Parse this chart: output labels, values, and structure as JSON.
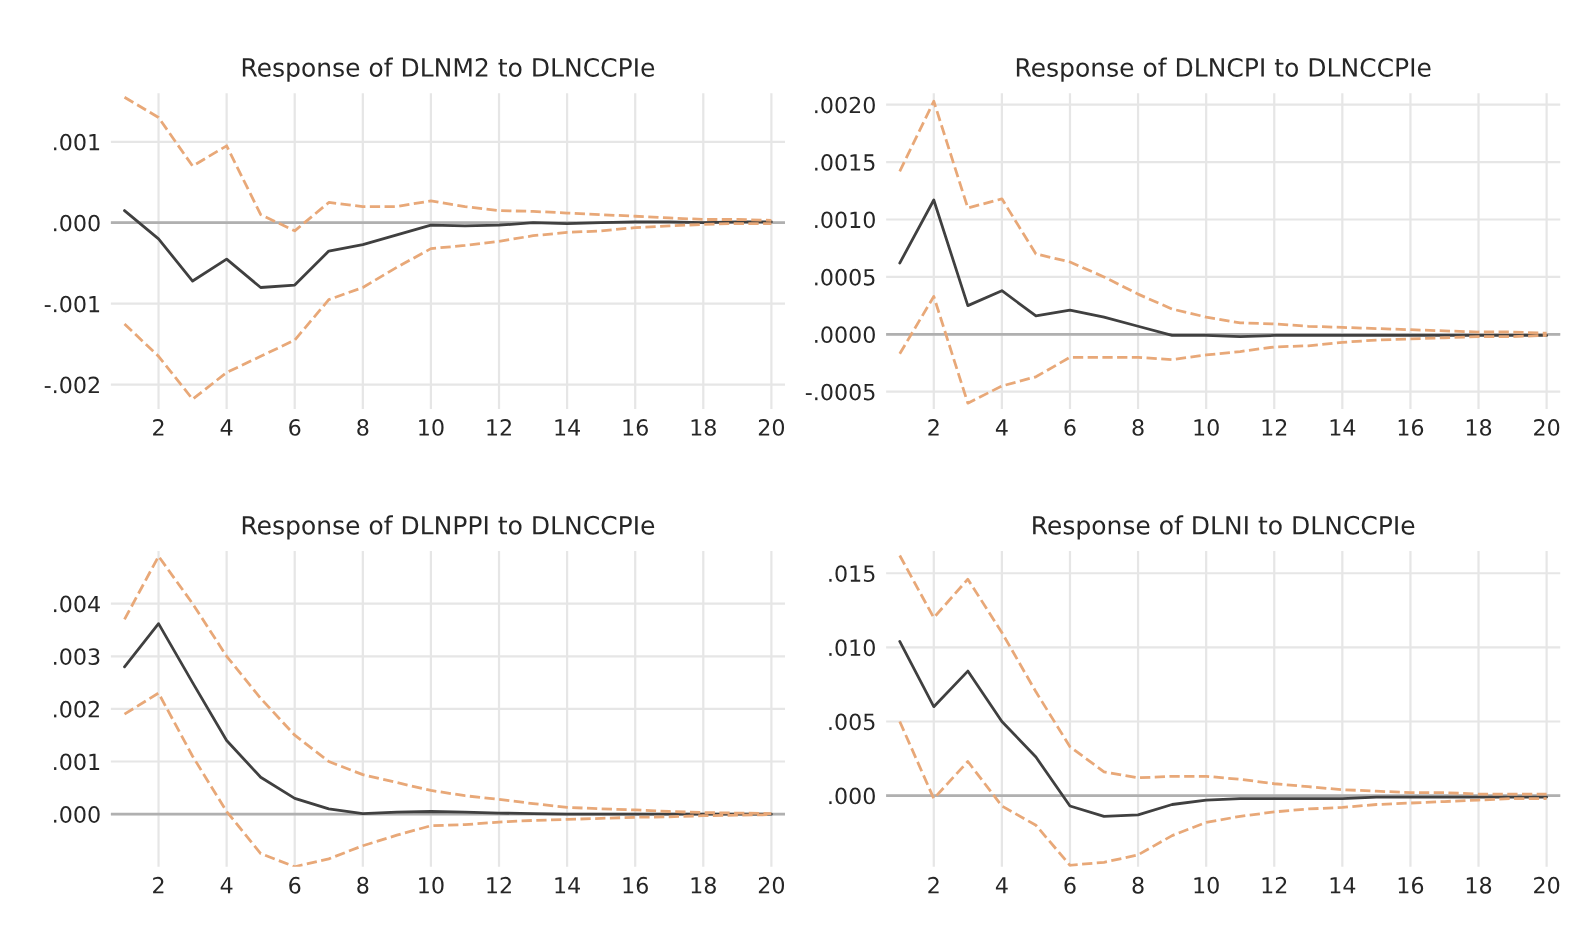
{
  "chart_data": [
    {
      "type": "line",
      "title": "Response of DLNM2 to DLNCCPIe",
      "x": [
        1,
        2,
        3,
        4,
        5,
        6,
        7,
        8,
        9,
        10,
        11,
        12,
        13,
        14,
        15,
        16,
        17,
        18,
        19,
        20
      ],
      "xlim": [
        0.6,
        20.4
      ],
      "xticks": [
        2,
        4,
        6,
        8,
        10,
        12,
        14,
        16,
        18,
        20
      ],
      "ylim": [
        -0.0023,
        0.0016
      ],
      "yticks": [
        {
          "value": 0.001,
          "label": ".001"
        },
        {
          "value": 0,
          "label": ".000"
        },
        {
          "value": -0.001,
          "label": "-.001"
        },
        {
          "value": -0.002,
          "label": "-.002"
        }
      ],
      "grid": true,
      "ref_lines": [
        {
          "axis": "y",
          "value": 0,
          "color": "#b0b0b0"
        }
      ],
      "series": [
        {
          "color": "#404040",
          "line_style": "solid",
          "values": [
            0.00015,
            -0.0002,
            -0.00072,
            -0.00045,
            -0.0008,
            -0.00077,
            -0.00035,
            -0.00027,
            -0.00015,
            -3e-05,
            -4e-05,
            -3e-05,
            0,
            -1e-05,
            0,
            1e-05,
            1e-05,
            0,
            1e-05,
            1e-05
          ]
        },
        {
          "color": "#e8a878",
          "line_style": "dashed",
          "values": [
            0.00155,
            0.0013,
            0.0007,
            0.00095,
            0.0001,
            -0.0001,
            0.00025,
            0.0002,
            0.0002,
            0.00027,
            0.0002,
            0.00015,
            0.00014,
            0.00012,
            0.0001,
            8e-05,
            6e-05,
            4e-05,
            4e-05,
            3e-05
          ]
        },
        {
          "color": "#e8a878",
          "line_style": "dashed",
          "values": [
            -0.00125,
            -0.00165,
            -0.00218,
            -0.00185,
            -0.00165,
            -0.00145,
            -0.00095,
            -0.0008,
            -0.00055,
            -0.00032,
            -0.00028,
            -0.00023,
            -0.00016,
            -0.00012,
            -0.0001,
            -6e-05,
            -4e-05,
            -2e-05,
            -1e-05,
            -1e-05
          ]
        }
      ]
    },
    {
      "type": "line",
      "title": "Response of DLNCPI to DLNCCPIe",
      "x": [
        1,
        2,
        3,
        4,
        5,
        6,
        7,
        8,
        9,
        10,
        11,
        12,
        13,
        14,
        15,
        16,
        17,
        18,
        19,
        20
      ],
      "xlim": [
        0.6,
        20.4
      ],
      "xticks": [
        2,
        4,
        6,
        8,
        10,
        12,
        14,
        16,
        18,
        20
      ],
      "ylim": [
        -0.00065,
        0.0021
      ],
      "yticks": [
        {
          "value": 0.002,
          "label": ".0020"
        },
        {
          "value": 0.0015,
          "label": ".0015"
        },
        {
          "value": 0.001,
          "label": ".0010"
        },
        {
          "value": 0.0005,
          "label": ".0005"
        },
        {
          "value": 0,
          "label": ".0000"
        },
        {
          "value": -0.0005,
          "label": "-.0005"
        }
      ],
      "grid": true,
      "ref_lines": [
        {
          "axis": "y",
          "value": 0,
          "color": "#b0b0b0"
        }
      ],
      "series": [
        {
          "color": "#404040",
          "line_style": "solid",
          "values": [
            0.00062,
            0.00117,
            0.00025,
            0.00038,
            0.00016,
            0.00021,
            0.00015,
            7e-05,
            -1e-05,
            -1e-05,
            -2e-05,
            -1e-05,
            -1e-05,
            -1e-05,
            -1e-05,
            -1e-05,
            -1e-05,
            -1e-05,
            -1e-05,
            -1e-05
          ]
        },
        {
          "color": "#e8a878",
          "line_style": "dashed",
          "values": [
            0.00142,
            0.00203,
            0.0011,
            0.00118,
            0.0007,
            0.00063,
            0.0005,
            0.00035,
            0.00022,
            0.00015,
            0.0001,
            9e-05,
            7e-05,
            6e-05,
            5e-05,
            4e-05,
            3e-05,
            2e-05,
            2e-05,
            1e-05
          ]
        },
        {
          "color": "#e8a878",
          "line_style": "dashed",
          "values": [
            -0.00017,
            0.00033,
            -0.0006,
            -0.00045,
            -0.00037,
            -0.0002,
            -0.0002,
            -0.0002,
            -0.00022,
            -0.00018,
            -0.00015,
            -0.00011,
            -0.0001,
            -7e-05,
            -5e-05,
            -4e-05,
            -3e-05,
            -2e-05,
            -2e-05,
            -1e-05
          ]
        }
      ]
    },
    {
      "type": "line",
      "title": "Response of DLNPPI to DLNCCPIe",
      "x": [
        1,
        2,
        3,
        4,
        5,
        6,
        7,
        8,
        9,
        10,
        11,
        12,
        13,
        14,
        15,
        16,
        17,
        18,
        19,
        20
      ],
      "xlim": [
        0.6,
        20.4
      ],
      "xticks": [
        2,
        4,
        6,
        8,
        10,
        12,
        14,
        16,
        18,
        20
      ],
      "ylim": [
        -0.001,
        0.005
      ],
      "yticks": [
        {
          "value": 0.004,
          "label": ".004"
        },
        {
          "value": 0.003,
          "label": ".003"
        },
        {
          "value": 0.002,
          "label": ".002"
        },
        {
          "value": 0.001,
          "label": ".001"
        },
        {
          "value": 0,
          "label": ".000"
        }
      ],
      "grid": true,
      "ref_lines": [
        {
          "axis": "y",
          "value": 0,
          "color": "#b0b0b0"
        }
      ],
      "series": [
        {
          "color": "#404040",
          "line_style": "solid",
          "values": [
            0.0028,
            0.00362,
            0.0025,
            0.0014,
            0.0007,
            0.0003,
            0.0001,
            1e-05,
            4e-05,
            5e-05,
            4e-05,
            2e-05,
            1e-05,
            0,
            0,
            0,
            0,
            0,
            0,
            0
          ]
        },
        {
          "color": "#e8a878",
          "line_style": "dashed",
          "values": [
            0.0037,
            0.0049,
            0.004,
            0.003,
            0.0022,
            0.0015,
            0.001,
            0.00075,
            0.0006,
            0.00045,
            0.00035,
            0.00028,
            0.0002,
            0.00013,
            0.0001,
            8e-05,
            5e-05,
            3e-05,
            2e-05,
            1e-05
          ]
        },
        {
          "color": "#e8a878",
          "line_style": "dashed",
          "values": [
            0.0019,
            0.0023,
            0.0011,
            5e-05,
            -0.00075,
            -0.001,
            -0.00085,
            -0.0006,
            -0.0004,
            -0.00022,
            -0.0002,
            -0.00015,
            -0.00012,
            -0.0001,
            -8e-05,
            -6e-05,
            -5e-05,
            -3e-05,
            -2e-05,
            -1e-05
          ]
        }
      ]
    },
    {
      "type": "line",
      "title": "Response of DLNI to DLNCCPIe",
      "x": [
        1,
        2,
        3,
        4,
        5,
        6,
        7,
        8,
        9,
        10,
        11,
        12,
        13,
        14,
        15,
        16,
        17,
        18,
        19,
        20
      ],
      "xlim": [
        0.6,
        20.4
      ],
      "xticks": [
        2,
        4,
        6,
        8,
        10,
        12,
        14,
        16,
        18,
        20
      ],
      "ylim": [
        -0.0048,
        0.0165
      ],
      "yticks": [
        {
          "value": 0.015,
          "label": ".015"
        },
        {
          "value": 0.01,
          "label": ".010"
        },
        {
          "value": 0.005,
          "label": ".005"
        },
        {
          "value": 0,
          "label": ".000"
        }
      ],
      "grid": true,
      "ref_lines": [
        {
          "axis": "y",
          "value": 0,
          "color": "#b0b0b0"
        }
      ],
      "series": [
        {
          "color": "#404040",
          "line_style": "solid",
          "values": [
            0.0104,
            0.006,
            0.0084,
            0.005,
            0.0026,
            -0.0007,
            -0.0014,
            -0.0013,
            -0.0006,
            -0.0003,
            -0.0002,
            -0.0002,
            -0.0002,
            -0.0002,
            -0.0001,
            -0.0001,
            -0.0001,
            -0.0001,
            -0.0001,
            -0.0001
          ]
        },
        {
          "color": "#e8a878",
          "line_style": "dashed",
          "values": [
            0.0162,
            0.012,
            0.0146,
            0.011,
            0.007,
            0.0033,
            0.0016,
            0.0012,
            0.0013,
            0.0013,
            0.0011,
            0.0008,
            0.0006,
            0.0004,
            0.0003,
            0.0002,
            0.0002,
            0.0001,
            0.0001,
            0.0001
          ]
        },
        {
          "color": "#e8a878",
          "line_style": "dashed",
          "values": [
            0.005,
            -0.0002,
            0.0023,
            -0.0007,
            -0.002,
            -0.0047,
            -0.0045,
            -0.004,
            -0.0027,
            -0.0018,
            -0.0014,
            -0.0011,
            -0.0009,
            -0.0008,
            -0.0006,
            -0.0005,
            -0.0004,
            -0.0003,
            -0.0002,
            -0.0002
          ]
        }
      ]
    }
  ]
}
